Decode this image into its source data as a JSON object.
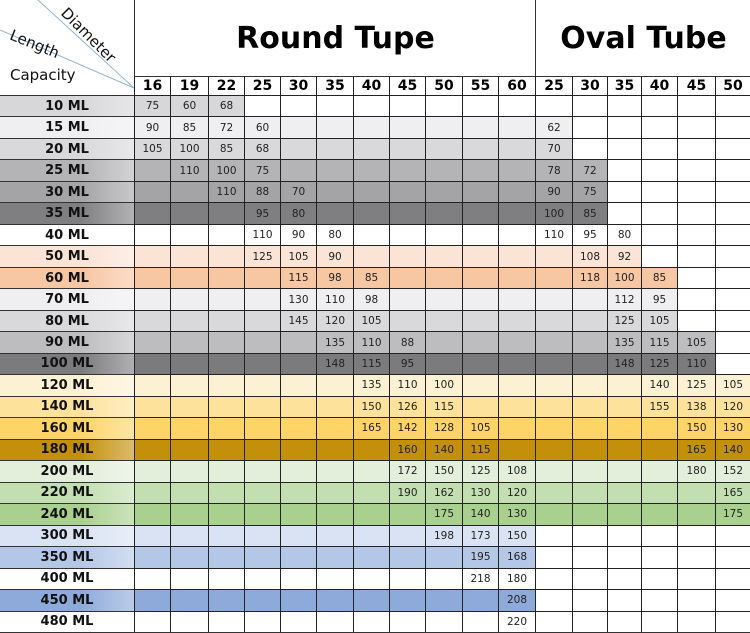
{
  "corner": {
    "capacity_label": "Capacity",
    "length_label": "Length",
    "diameter_label": "Diameter",
    "line_color": "#8fb4cf"
  },
  "sections": {
    "round": {
      "title": "Round Tupe"
    },
    "oval": {
      "title": "Oval Tube"
    }
  },
  "round_diameters": [
    "16",
    "19",
    "22",
    "25",
    "30",
    "35",
    "40",
    "45",
    "50",
    "55",
    "60"
  ],
  "oval_diameters": [
    "25",
    "30",
    "35",
    "40",
    "45",
    "50"
  ],
  "rows": [
    {
      "capacity": "10 ML",
      "color": "#d7d6d9",
      "shade_cols": 3,
      "round": [
        "75",
        "60",
        "68",
        "",
        "",
        "",
        "",
        "",
        "",
        "",
        ""
      ],
      "oval": [
        "",
        "",
        "",
        "",
        "",
        ""
      ]
    },
    {
      "capacity": "15 ML",
      "color": "#efeef1",
      "shade_cols": 12,
      "round": [
        "90",
        "85",
        "72",
        "60",
        "",
        "",
        "",
        "",
        "",
        "",
        ""
      ],
      "oval": [
        "62",
        "",
        "",
        "",
        "",
        ""
      ]
    },
    {
      "capacity": "20 ML",
      "color": "#d9d8db",
      "shade_cols": 12,
      "round": [
        "105",
        "100",
        "85",
        "68",
        "",
        "",
        "",
        "",
        "",
        "",
        ""
      ],
      "oval": [
        "70",
        "",
        "",
        "",
        "",
        ""
      ]
    },
    {
      "capacity": "25 ML",
      "color": "#b4b3b6",
      "shade_cols": 13,
      "round": [
        "",
        "110",
        "100",
        "75",
        "",
        "",
        "",
        "",
        "",
        "",
        ""
      ],
      "oval": [
        "78",
        "72",
        "",
        "",
        "",
        ""
      ]
    },
    {
      "capacity": "30 ML",
      "color": "#a4a3a6",
      "shade_cols": 13,
      "round": [
        "",
        "",
        "110",
        "88",
        "70",
        "",
        "",
        "",
        "",
        "",
        ""
      ],
      "oval": [
        "90",
        "75",
        "",
        "",
        "",
        ""
      ]
    },
    {
      "capacity": "35 ML",
      "color": "#7f7e81",
      "shade_cols": 13,
      "round": [
        "",
        "",
        "",
        "95",
        "80",
        "",
        "",
        "",
        "",
        "",
        ""
      ],
      "oval": [
        "100",
        "85",
        "",
        "",
        "",
        ""
      ]
    },
    {
      "capacity": "40 ML",
      "color": "#ffffff",
      "shade_cols": 0,
      "round": [
        "",
        "",
        "",
        "110",
        "90",
        "80",
        "",
        "",
        "",
        "",
        ""
      ],
      "oval": [
        "110",
        "95",
        "80",
        "",
        "",
        ""
      ]
    },
    {
      "capacity": "50 ML",
      "color": "#fbe3d6",
      "shade_cols": 14,
      "round": [
        "",
        "",
        "",
        "125",
        "105",
        "90",
        "",
        "",
        "",
        "",
        ""
      ],
      "oval": [
        "",
        "108",
        "92",
        "",
        "",
        ""
      ]
    },
    {
      "capacity": "60 ML",
      "color": "#f7c6a3",
      "shade_cols": 15,
      "round": [
        "",
        "",
        "",
        "",
        "115",
        "98",
        "85",
        "",
        "",
        "",
        ""
      ],
      "oval": [
        "",
        "118",
        "100",
        "85",
        "",
        ""
      ]
    },
    {
      "capacity": "70 ML",
      "color": "#efeef1",
      "shade_cols": 15,
      "round": [
        "",
        "",
        "",
        "",
        "130",
        "110",
        "98",
        "",
        "",
        "",
        ""
      ],
      "oval": [
        "",
        "",
        "112",
        "95",
        "",
        ""
      ]
    },
    {
      "capacity": "80 ML",
      "color": "#d9d8db",
      "shade_cols": 15,
      "round": [
        "",
        "",
        "",
        "",
        "145",
        "120",
        "105",
        "",
        "",
        "",
        ""
      ],
      "oval": [
        "",
        "",
        "125",
        "105",
        "",
        ""
      ]
    },
    {
      "capacity": "90 ML",
      "color": "#bdbcbf",
      "shade_cols": 16,
      "round": [
        "",
        "",
        "",
        "",
        "",
        "135",
        "110",
        "88",
        "",
        "",
        ""
      ],
      "oval": [
        "",
        "",
        "135",
        "115",
        "105",
        ""
      ]
    },
    {
      "capacity": "100 ML",
      "color": "#7b7a7d",
      "shade_cols": 16,
      "round": [
        "",
        "",
        "",
        "",
        "",
        "148",
        "115",
        "95",
        "",
        "",
        ""
      ],
      "oval": [
        "",
        "",
        "148",
        "125",
        "110",
        ""
      ]
    },
    {
      "capacity": "120 ML",
      "color": "#fdf1d4",
      "shade_cols": 17,
      "round": [
        "",
        "",
        "",
        "",
        "",
        "",
        "135",
        "110",
        "100",
        "",
        ""
      ],
      "oval": [
        "",
        "",
        "",
        "140",
        "125",
        "105"
      ]
    },
    {
      "capacity": "140 ML",
      "color": "#fde29c",
      "shade_cols": 17,
      "round": [
        "",
        "",
        "",
        "",
        "",
        "",
        "150",
        "126",
        "115",
        "",
        ""
      ],
      "oval": [
        "",
        "",
        "",
        "155",
        "138",
        "120"
      ]
    },
    {
      "capacity": "160 ML",
      "color": "#fdd466",
      "shade_cols": 17,
      "round": [
        "",
        "",
        "",
        "",
        "",
        "",
        "165",
        "142",
        "128",
        "105",
        ""
      ],
      "oval": [
        "",
        "",
        "",
        "",
        "150",
        "130"
      ]
    },
    {
      "capacity": "180 ML",
      "color": "#c48f0a",
      "shade_cols": 17,
      "round": [
        "",
        "",
        "",
        "",
        "",
        "",
        "",
        "160",
        "140",
        "115",
        ""
      ],
      "oval": [
        "",
        "",
        "",
        "",
        "165",
        "140"
      ]
    },
    {
      "capacity": "200 ML",
      "color": "#e3eedb",
      "shade_cols": 17,
      "round": [
        "",
        "",
        "",
        "",
        "",
        "",
        "",
        "172",
        "150",
        "125",
        "108"
      ],
      "oval": [
        "",
        "",
        "",
        "",
        "180",
        "152"
      ]
    },
    {
      "capacity": "220 ML",
      "color": "#c3dfb2",
      "shade_cols": 17,
      "round": [
        "",
        "",
        "",
        "",
        "",
        "",
        "",
        "190",
        "162",
        "130",
        "120"
      ],
      "oval": [
        "",
        "",
        "",
        "",
        "",
        "165"
      ]
    },
    {
      "capacity": "240 ML",
      "color": "#a9d08e",
      "shade_cols": 17,
      "round": [
        "",
        "",
        "",
        "",
        "",
        "",
        "",
        "",
        "175",
        "140",
        "130"
      ],
      "oval": [
        "",
        "",
        "",
        "",
        "",
        "175"
      ]
    },
    {
      "capacity": "300 ML",
      "color": "#dae3f3",
      "shade_cols": 11,
      "round": [
        "",
        "",
        "",
        "",
        "",
        "",
        "",
        "",
        "198",
        "173",
        "150"
      ],
      "oval": [
        "",
        "",
        "",
        "",
        "",
        ""
      ]
    },
    {
      "capacity": "350 ML",
      "color": "#b4c7e7",
      "shade_cols": 11,
      "round": [
        "",
        "",
        "",
        "",
        "",
        "",
        "",
        "",
        "",
        "195",
        "168"
      ],
      "oval": [
        "",
        "",
        "",
        "",
        "",
        ""
      ]
    },
    {
      "capacity": "400 ML",
      "color": "#ffffff",
      "shade_cols": 0,
      "round": [
        "",
        "",
        "",
        "",
        "",
        "",
        "",
        "",
        "",
        "218",
        "180"
      ],
      "oval": [
        "",
        "",
        "",
        "",
        "",
        ""
      ]
    },
    {
      "capacity": "450 ML",
      "color": "#8eaadb",
      "shade_cols": 11,
      "round": [
        "",
        "",
        "",
        "",
        "",
        "",
        "",
        "",
        "",
        "",
        "208"
      ],
      "oval": [
        "",
        "",
        "",
        "",
        "",
        ""
      ]
    },
    {
      "capacity": "480 ML",
      "color": "#ffffff",
      "shade_cols": 0,
      "round": [
        "",
        "",
        "",
        "",
        "",
        "",
        "",
        "",
        "",
        "",
        "220"
      ],
      "oval": [
        "",
        "",
        "",
        "",
        "",
        ""
      ]
    }
  ]
}
